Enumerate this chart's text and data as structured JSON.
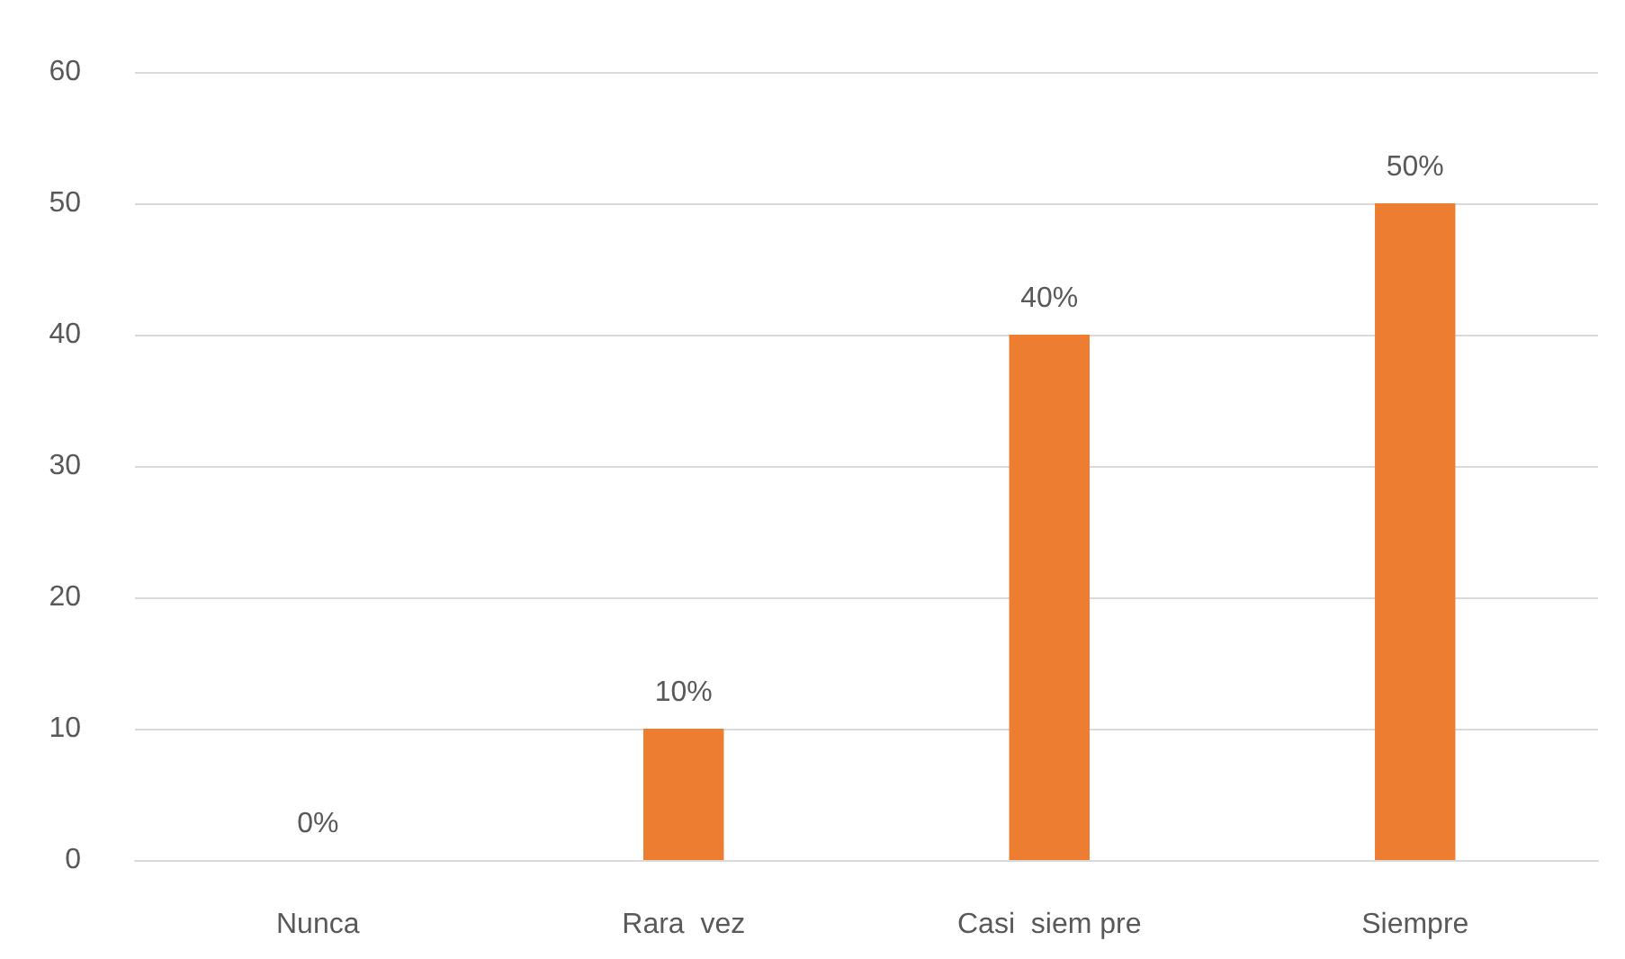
{
  "chart_data": {
    "type": "bar",
    "categories": [
      "Nunca",
      "Rara  vez",
      "Casi  siem pre",
      "Siempre"
    ],
    "values": [
      0,
      10,
      40,
      50
    ],
    "color": "#ed7d31",
    "value_labels": [
      "0%",
      "10%",
      "40%",
      "50%"
    ],
    "ylim": [
      0,
      60
    ],
    "yticks": [
      0,
      10,
      20,
      30,
      40,
      50,
      60
    ],
    "grid": "y"
  }
}
